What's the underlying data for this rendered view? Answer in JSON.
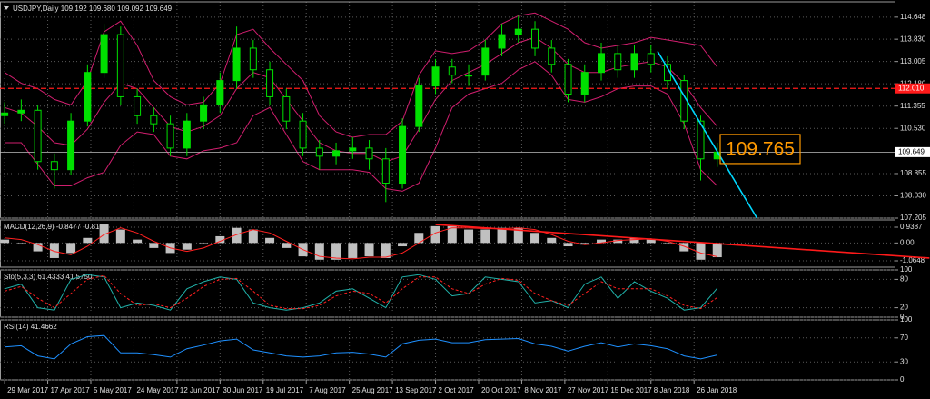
{
  "chart_data": [
    {
      "type": "candlestick",
      "title": "USDJPY,Daily  109.192 109.680 109.092 109.649",
      "x": [
        0,
        5,
        10,
        15,
        20,
        25,
        30,
        35,
        40,
        45,
        50,
        55,
        60,
        65,
        70,
        75,
        80,
        85,
        90,
        95,
        100,
        105,
        110,
        115,
        120,
        125,
        130,
        135,
        140,
        145,
        150,
        155,
        160,
        165,
        170,
        175,
        180,
        185,
        190,
        195,
        200,
        205,
        210,
        215
      ],
      "xlim": [
        -1.4,
        268.5
      ],
      "xticks": [
        {
          "value": 0,
          "label": "29 Mar 2017"
        },
        {
          "value": 13,
          "label": "17 Apr 2017"
        },
        {
          "value": 26,
          "label": "5 May 2017"
        },
        {
          "value": 39,
          "label": "24 May 2017"
        },
        {
          "value": 52,
          "label": "12 Jun 2017"
        },
        {
          "value": 65,
          "label": "30 Jun 2017"
        },
        {
          "value": 78,
          "label": "19 Jul 2017"
        },
        {
          "value": 91,
          "label": "7 Aug 2017"
        },
        {
          "value": 104,
          "label": "25 Aug 2017"
        },
        {
          "value": 117,
          "label": "13 Sep 2017"
        },
        {
          "value": 130,
          "label": "2 Oct 2017"
        },
        {
          "value": 143,
          "label": "20 Oct 2017"
        },
        {
          "value": 156,
          "label": "8 Nov 2017"
        },
        {
          "value": 169,
          "label": "27 Nov 2017"
        },
        {
          "value": 182,
          "label": "15 Dec 2017"
        },
        {
          "value": 195,
          "label": "8 Jan 2018"
        },
        {
          "value": 208,
          "label": "26 Jan 2018"
        }
      ],
      "open": [
        111.0,
        111.1,
        111.2,
        109.3,
        109.0,
        110.8,
        112.6,
        114.0,
        111.7,
        111.0,
        110.7,
        109.8,
        110.8,
        111.4,
        112.3,
        113.5,
        112.7,
        111.7,
        110.8,
        109.8,
        109.5,
        109.7,
        109.8,
        109.4,
        108.5,
        110.6,
        112.1,
        112.8,
        112.5,
        112.5,
        113.5,
        114.0,
        114.2,
        113.5,
        112.9,
        111.8,
        112.6,
        113.3,
        112.7,
        113.3,
        112.9,
        112.3,
        110.8,
        109.4
      ],
      "high": [
        111.5,
        111.6,
        111.4,
        109.6,
        111.1,
        112.9,
        114.4,
        114.3,
        112.0,
        111.3,
        111.0,
        111.1,
        111.7,
        112.6,
        114.3,
        113.8,
        113.0,
        112.0,
        111.1,
        110.1,
        110.0,
        110.2,
        110.1,
        109.8,
        110.9,
        112.4,
        113.1,
        113.1,
        112.9,
        113.8,
        114.4,
        114.7,
        114.5,
        113.8,
        113.1,
        112.9,
        113.7,
        113.6,
        113.6,
        113.6,
        113.2,
        112.5,
        111.0,
        110.0
      ],
      "low": [
        110.7,
        110.8,
        109.0,
        108.3,
        108.8,
        110.6,
        112.4,
        111.4,
        110.7,
        110.4,
        109.5,
        109.5,
        110.5,
        111.1,
        112.0,
        112.4,
        111.4,
        110.5,
        109.5,
        109.0,
        109.2,
        109.4,
        109.0,
        107.8,
        108.3,
        110.4,
        111.8,
        112.2,
        112.1,
        112.3,
        113.2,
        113.7,
        113.2,
        112.6,
        111.5,
        111.5,
        112.3,
        112.4,
        112.4,
        112.6,
        112.0,
        110.5,
        108.6,
        109.1
      ],
      "close": [
        111.1,
        111.2,
        109.3,
        109.0,
        110.8,
        112.6,
        114.0,
        111.7,
        111.0,
        110.7,
        109.8,
        110.8,
        111.4,
        112.3,
        113.5,
        112.7,
        111.7,
        110.8,
        109.8,
        109.5,
        109.7,
        109.8,
        109.4,
        108.5,
        110.6,
        112.1,
        112.8,
        112.5,
        112.5,
        113.5,
        114.0,
        114.2,
        113.5,
        112.9,
        111.8,
        112.6,
        113.3,
        112.7,
        113.3,
        112.9,
        112.3,
        110.8,
        109.4,
        109.649
      ],
      "up_color": "#00e000",
      "down_color": "#000000",
      "wick_color": "#00e000",
      "bands": {
        "color": "#d01e6e",
        "upper": [
          112.6,
          112.2,
          112.0,
          111.6,
          111.4,
          112.3,
          114.1,
          114.5,
          113.6,
          112.3,
          111.7,
          111.4,
          111.5,
          112.2,
          114.0,
          114.2,
          113.5,
          112.9,
          112.3,
          111.0,
          110.4,
          110.2,
          110.3,
          110.3,
          110.8,
          112.5,
          113.4,
          113.3,
          113.4,
          113.8,
          114.4,
          114.7,
          114.8,
          114.5,
          114.2,
          113.7,
          113.5,
          113.6,
          113.7,
          113.9,
          113.8,
          113.7,
          113.6,
          112.8
        ],
        "middle": [
          111.3,
          111.1,
          110.6,
          110.0,
          109.9,
          110.5,
          111.5,
          112.2,
          112.0,
          111.3,
          110.6,
          110.4,
          110.6,
          111.0,
          112.0,
          112.6,
          112.4,
          111.6,
          110.8,
          110.0,
          109.7,
          109.6,
          109.6,
          109.3,
          109.5,
          110.5,
          111.6,
          112.3,
          112.6,
          112.9,
          113.3,
          113.7,
          113.9,
          113.5,
          112.9,
          112.6,
          112.6,
          112.8,
          112.9,
          113.0,
          112.8,
          112.2,
          111.3,
          110.6
        ],
        "lower": [
          110.0,
          110.0,
          109.2,
          108.4,
          108.4,
          108.7,
          108.9,
          109.9,
          110.4,
          110.3,
          109.5,
          109.4,
          109.7,
          109.8,
          110.0,
          111.0,
          111.3,
          110.3,
          109.3,
          109.0,
          109.0,
          109.0,
          108.9,
          108.3,
          108.2,
          108.5,
          109.8,
          111.3,
          111.8,
          112.0,
          112.2,
          112.7,
          113.0,
          112.5,
          111.6,
          111.5,
          111.7,
          112.0,
          112.1,
          112.1,
          111.8,
          110.7,
          109.0,
          108.4
        ]
      },
      "trendline": {
        "color": "#00d8ff",
        "x": [
          197,
          227
        ],
        "y": [
          113.38,
          107.2
        ]
      },
      "level": {
        "value": 112.01,
        "label": "112.010",
        "color": "#ff1a1a"
      },
      "last_price": 109.649,
      "annotation": 109.765,
      "annotation_color": "#ff9900",
      "ylim": [
        107.205,
        115.215
      ],
      "yticks": [
        114.648,
        {
          "value": 113.83,
          "label": "113.830"
        },
        113.005,
        {
          "value": 112.18,
          "label": "112.180"
        },
        111.355,
        {
          "value": 110.53,
          "label": "110.530"
        },
        108.855,
        {
          "value": 108.03,
          "label": "108.030"
        },
        107.205
      ],
      "grid": true
    },
    {
      "type": "macd",
      "title": "MACD(12,26,9) -0.8477 -0.8162",
      "histogram": [
        0.2,
        0.0,
        -0.5,
        -0.9,
        -0.6,
        0.3,
        1.1,
        0.8,
        0.2,
        -0.3,
        -0.6,
        -0.4,
        0.0,
        0.4,
        0.9,
        0.8,
        0.3,
        -0.3,
        -0.8,
        -1.0,
        -1.0,
        -0.9,
        -0.8,
        -0.9,
        -0.2,
        0.6,
        1.0,
        1.0,
        0.8,
        0.8,
        0.9,
        0.9,
        0.6,
        0.3,
        -0.2,
        -0.1,
        0.2,
        0.2,
        0.3,
        0.2,
        0.0,
        -0.5,
        -1.0,
        -0.85
      ],
      "signal": [
        0.3,
        0.2,
        -0.1,
        -0.5,
        -0.7,
        -0.2,
        0.5,
        0.9,
        0.6,
        0.1,
        -0.3,
        -0.5,
        -0.3,
        0.1,
        0.5,
        0.8,
        0.6,
        0.1,
        -0.4,
        -0.8,
        -0.9,
        -0.95,
        -0.85,
        -0.85,
        -0.6,
        0.0,
        0.6,
        0.9,
        0.9,
        0.85,
        0.85,
        0.9,
        0.8,
        0.5,
        0.1,
        -0.1,
        0.0,
        0.15,
        0.2,
        0.25,
        0.1,
        -0.2,
        -0.6,
        -0.82
      ],
      "histogram_color": "#c0c0c0",
      "signal_color": "#ff2020",
      "trendline": {
        "color": "#ff1a1a",
        "x": [
          130,
          279
        ],
        "y": [
          1.1,
          -0.9
        ]
      },
      "ylim": [
        -1.444,
        1.372
      ],
      "yticks": [
        0.9387,
        {
          "value": 0,
          "label": "0.00"
        },
        -1.0648
      ],
      "grid": true
    },
    {
      "type": "line",
      "title": "Sto(5,3,3) 61.4333 41.5750",
      "series": [
        {
          "color": "#20b2aa",
          "values": [
            60,
            70,
            20,
            15,
            80,
            90,
            85,
            20,
            30,
            25,
            15,
            60,
            75,
            85,
            80,
            30,
            20,
            15,
            20,
            30,
            55,
            60,
            40,
            20,
            85,
            90,
            80,
            45,
            50,
            85,
            80,
            75,
            30,
            35,
            20,
            70,
            85,
            40,
            75,
            55,
            40,
            15,
            20,
            61.4
          ]
        },
        {
          "color": "#ff2020",
          "dash": true,
          "values": [
            55,
            65,
            40,
            20,
            50,
            80,
            88,
            50,
            25,
            28,
            20,
            40,
            65,
            80,
            82,
            55,
            25,
            18,
            18,
            25,
            45,
            55,
            50,
            30,
            60,
            85,
            85,
            60,
            50,
            70,
            82,
            78,
            50,
            35,
            25,
            50,
            75,
            60,
            60,
            60,
            45,
            25,
            18,
            41.6
          ]
        }
      ],
      "ylim": [
        0,
        100
      ],
      "yticks": [
        0,
        20,
        80,
        100
      ],
      "grid": true
    },
    {
      "type": "line",
      "title": "RSI(14) 41.4662",
      "series": [
        {
          "color": "#1e90ff",
          "values": [
            55,
            57,
            40,
            35,
            60,
            72,
            74,
            45,
            45,
            42,
            38,
            52,
            58,
            65,
            68,
            50,
            45,
            40,
            38,
            40,
            45,
            46,
            43,
            38,
            60,
            66,
            68,
            62,
            62,
            67,
            68,
            69,
            60,
            56,
            48,
            56,
            62,
            55,
            60,
            57,
            52,
            40,
            35,
            41.5
          ]
        }
      ],
      "ylim": [
        0,
        100
      ],
      "yticks": [
        0,
        30,
        70,
        100
      ],
      "grid": true
    }
  ]
}
